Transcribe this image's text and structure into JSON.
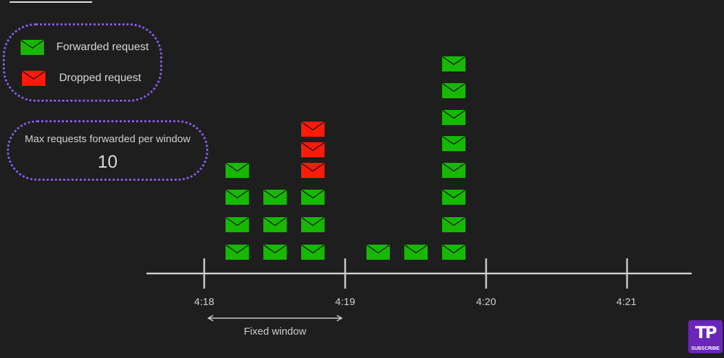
{
  "legend": {
    "forwarded_label": "Forwarded request",
    "dropped_label": "Dropped request",
    "forwarded_color": "#16b800",
    "dropped_color": "#ff1a0a"
  },
  "max_box": {
    "label": "Max requests forwarded per window",
    "value": "10"
  },
  "timeline": {
    "ticks": [
      "4:18",
      "4:19",
      "4:20",
      "4:21"
    ],
    "window_label": "Fixed window"
  },
  "columns": [
    {
      "forwarded": 4,
      "dropped": 0
    },
    {
      "forwarded": 3,
      "dropped": 0
    },
    {
      "forwarded": 3,
      "dropped": 3
    },
    {
      "forwarded": 1,
      "dropped": 0
    },
    {
      "forwarded": 1,
      "dropped": 0
    },
    {
      "forwarded": 8,
      "dropped": 0
    }
  ],
  "badge": {
    "logo": "TP",
    "label": "SUBSCRIBE",
    "color": "#6a26b8"
  },
  "colors": {
    "background": "#1e1e1e",
    "accent_dotted": "#8a5cf0",
    "axis": "#cfcfcf"
  }
}
